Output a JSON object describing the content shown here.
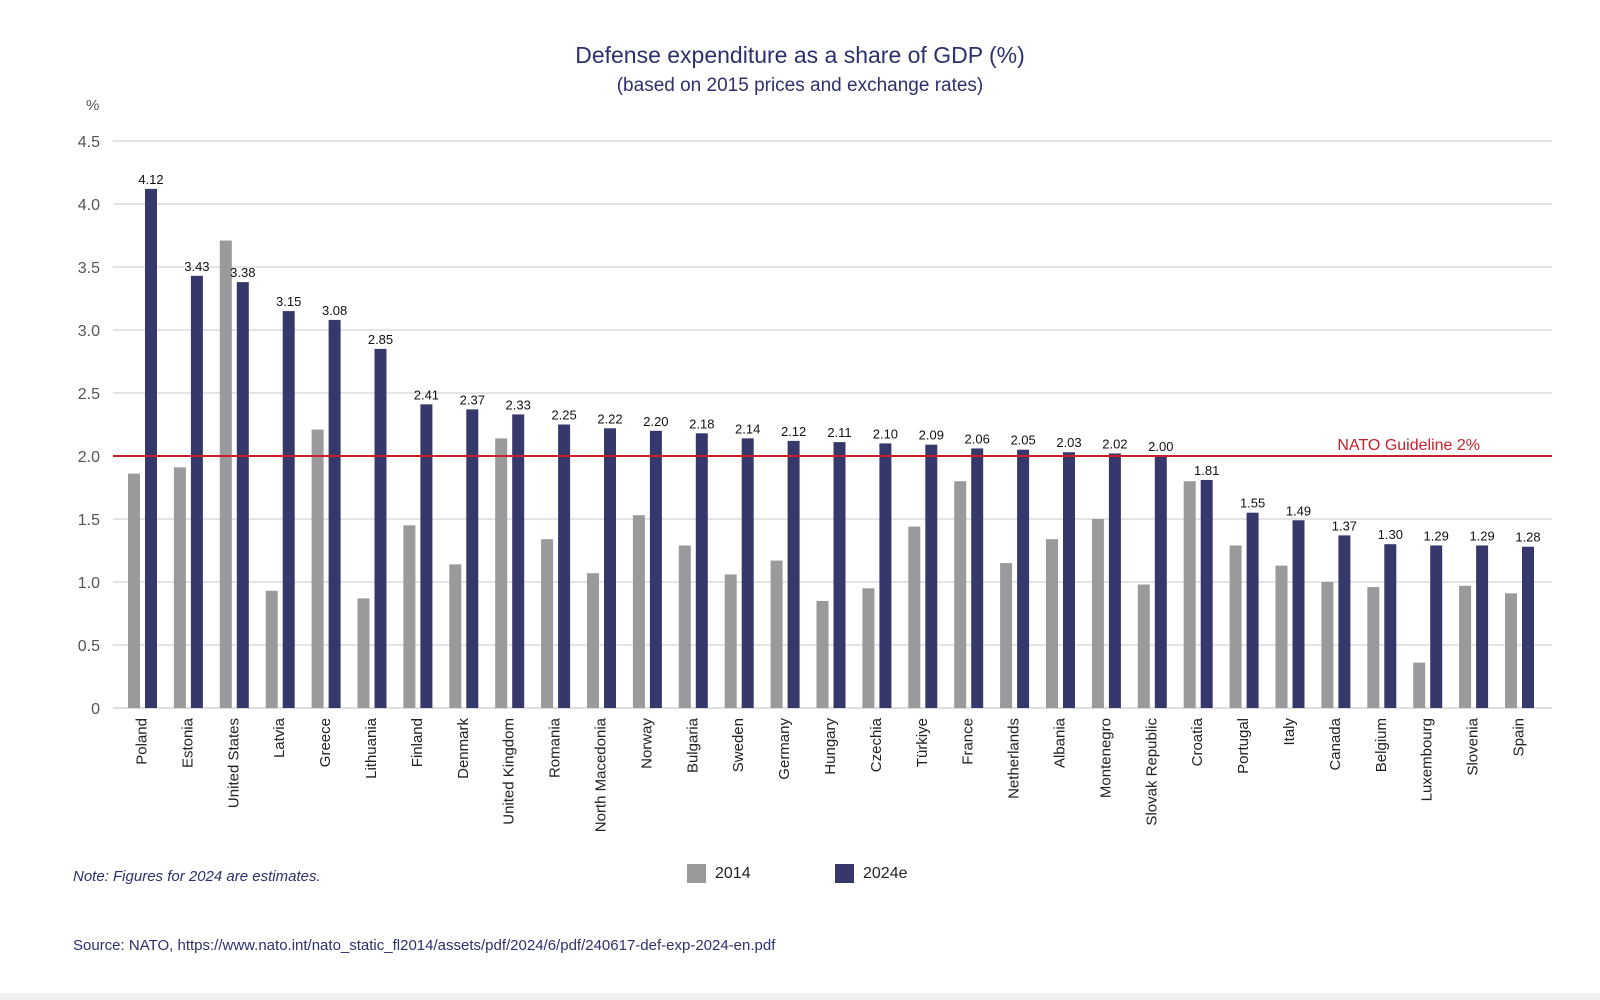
{
  "chart_data": {
    "type": "bar",
    "title": "Defense expenditure as a share of GDP (%)",
    "subtitle": "(based on 2015 prices and exchange rates)",
    "ylabel": "%",
    "ylim": [
      0,
      4.5
    ],
    "yticks": [
      "0",
      "0.5",
      "1.0",
      "1.5",
      "2.0",
      "2.5",
      "3.0",
      "3.5",
      "4.0",
      "4.5"
    ],
    "grid": true,
    "categories": [
      "Poland",
      "Estonia",
      "United States",
      "Latvia",
      "Greece",
      "Lithuania",
      "Finland",
      "Denmark",
      "United Kingdom",
      "Romania",
      "North Macedonia",
      "Norway",
      "Bulgaria",
      "Sweden",
      "Germany",
      "Hungary",
      "Czechia",
      "Türkiye",
      "France",
      "Netherlands",
      "Albania",
      "Montenegro",
      "Slovak Republic",
      "Croatia",
      "Portugal",
      "Italy",
      "Canada",
      "Belgium",
      "Luxembourg",
      "Slovenia",
      "Spain"
    ],
    "series": [
      {
        "name": "2014",
        "color": "#9a9a9c",
        "values": [
          1.86,
          1.91,
          3.71,
          0.93,
          2.21,
          0.87,
          1.45,
          1.14,
          2.14,
          1.34,
          1.07,
          1.53,
          1.29,
          1.06,
          1.17,
          0.85,
          0.95,
          1.44,
          1.8,
          1.15,
          1.34,
          1.5,
          0.98,
          1.8,
          1.29,
          1.13,
          1.0,
          0.96,
          0.36,
          0.97,
          0.91
        ]
      },
      {
        "name": "2024e",
        "color": "#36386c",
        "values": [
          4.12,
          3.43,
          3.38,
          3.15,
          3.08,
          2.85,
          2.41,
          2.37,
          2.33,
          2.25,
          2.22,
          2.2,
          2.18,
          2.14,
          2.12,
          2.11,
          2.1,
          2.09,
          2.06,
          2.05,
          2.03,
          2.02,
          2.0,
          1.81,
          1.55,
          1.49,
          1.37,
          1.3,
          1.29,
          1.29,
          1.28
        ]
      }
    ],
    "data_labels": [
      "4.12",
      "3.43",
      "3.38",
      "3.15",
      "3.08",
      "2.85",
      "2.41",
      "2.37",
      "2.33",
      "2.25",
      "2.22",
      "2.20",
      "2.18",
      "2.14",
      "2.12",
      "2.11",
      "2.10",
      "2.09",
      "2.06",
      "2.05",
      "2.03",
      "2.02",
      "2.00",
      "1.81",
      "1.55",
      "1.49",
      "1.37",
      "1.30",
      "1.29",
      "1.29",
      "1.28"
    ],
    "reference_line": {
      "value": 2.0,
      "label": "NATO Guideline 2%",
      "color": "#c8202b"
    },
    "legend_position": "bottom-center",
    "note": "Note: Figures for 2024 are estimates.",
    "source": "Source: NATO, https://www.nato.int/nato_static_fl2014/assets/pdf/2024/6/pdf/240617-def-exp-2024-en.pdf"
  },
  "colors": {
    "title": "#2e2f6e",
    "grid": "#c8c8c8",
    "axis_text": "#555555"
  }
}
